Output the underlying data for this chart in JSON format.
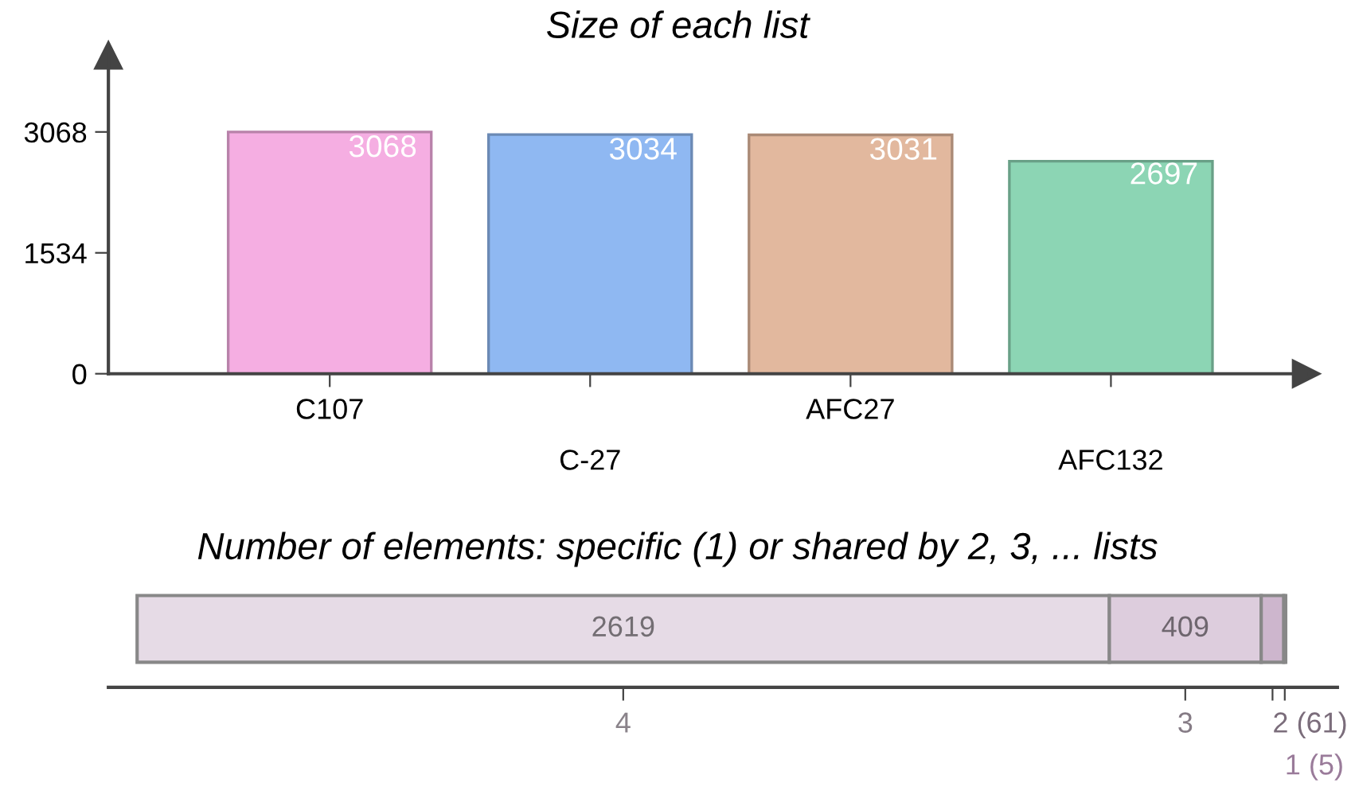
{
  "chart_data": [
    {
      "type": "bar",
      "title": "Size of each list",
      "categories": [
        "C107",
        "C-27",
        "AFC27",
        "AFC132"
      ],
      "values": [
        3068,
        3034,
        3031,
        2697
      ],
      "colors": [
        "#f5aee2",
        "#8fb8f2",
        "#e2b89e",
        "#8cd5b4"
      ],
      "ylim": [
        0,
        4040
      ],
      "yticks": [
        0,
        1534,
        3068
      ],
      "data_labels": true,
      "grid": false
    },
    {
      "type": "bar",
      "orientation": "horizontal",
      "stacked": true,
      "title": "Number of elements: specific (1) or shared by 2, 3, ... lists",
      "categories": [
        null
      ],
      "series": [
        {
          "name": "4",
          "color": "#e6dbe6",
          "values": [
            2619
          ],
          "value_labels": [
            "2619"
          ]
        },
        {
          "name": "3",
          "color": "#ddcddd",
          "values": [
            409
          ],
          "value_labels": [
            "409"
          ]
        },
        {
          "name": "2 (61)",
          "color": "#cdb6cd",
          "values": [
            61
          ],
          "value_labels": [
            null
          ]
        },
        {
          "name": "1 (5)",
          "color": "#9a7b9a",
          "values": [
            5
          ],
          "value_labels": [
            null
          ]
        }
      ],
      "grid": false
    }
  ]
}
